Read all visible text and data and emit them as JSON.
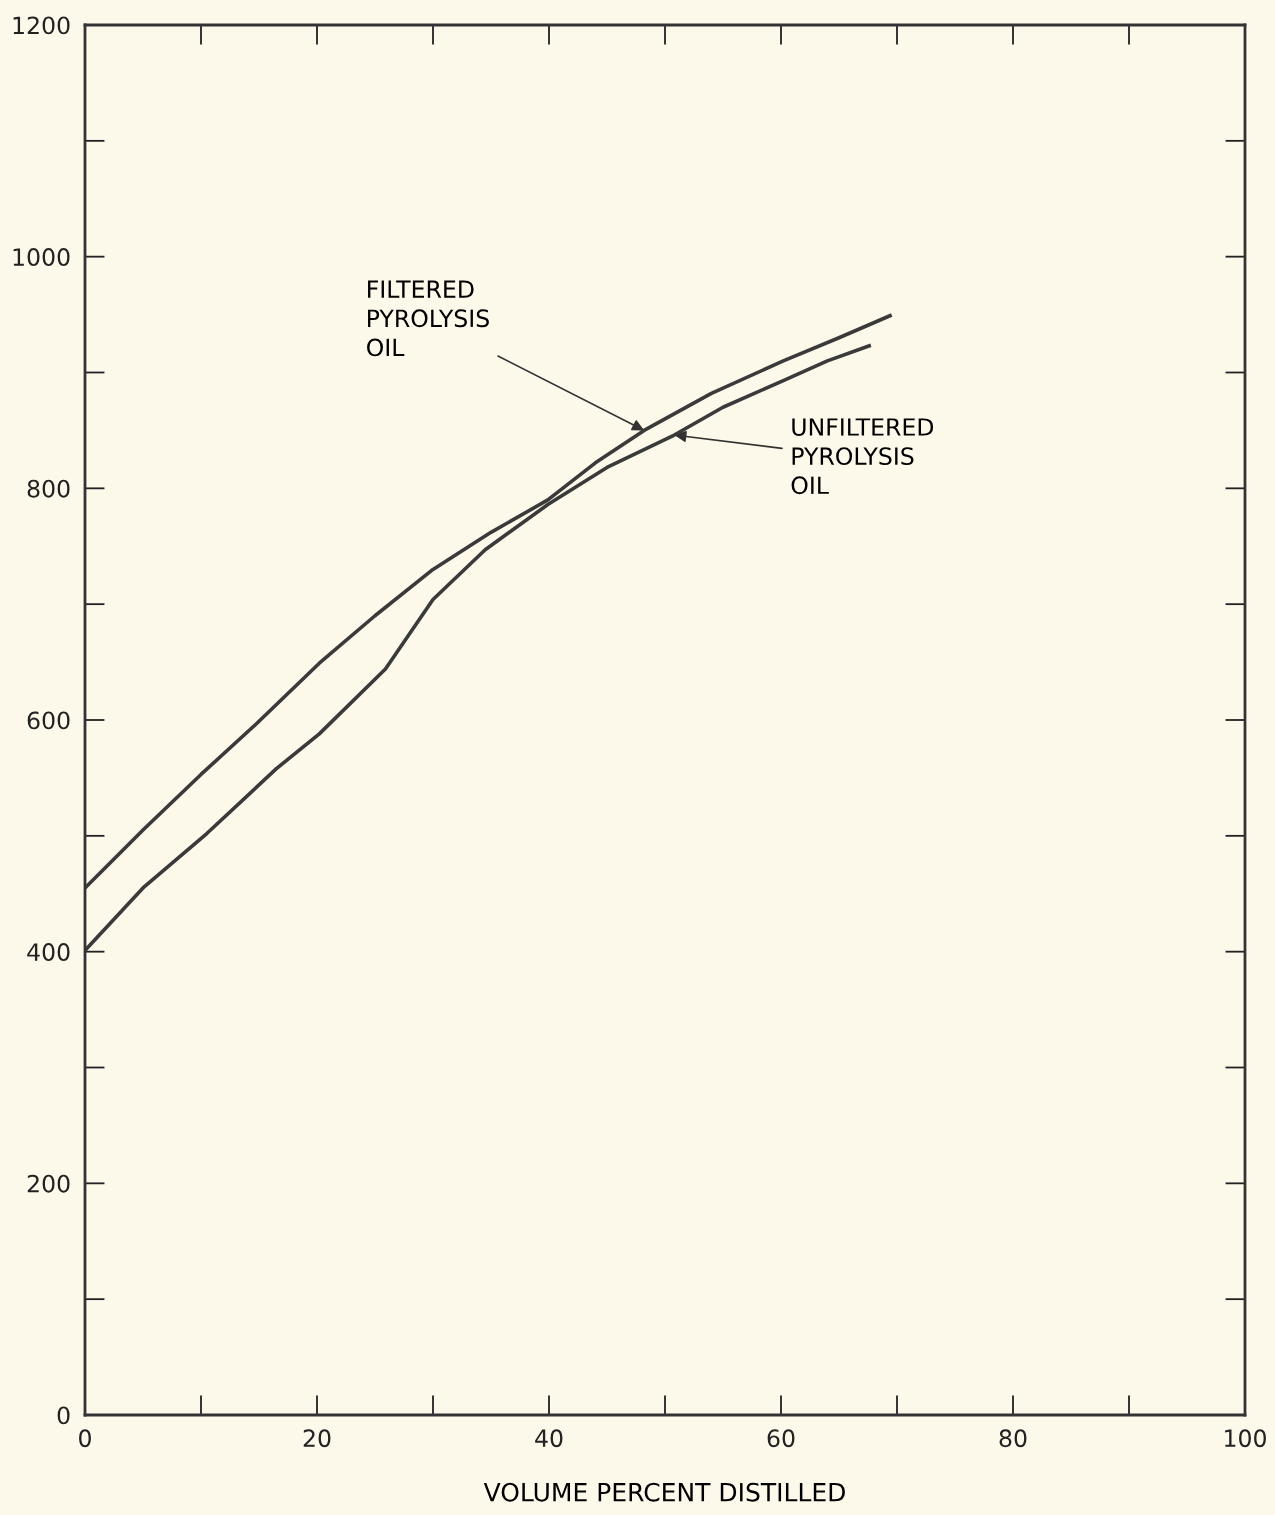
{
  "chart_data": {
    "type": "line",
    "xlabel": "VOLUME PERCENT DISTILLED",
    "xlim": [
      0,
      100
    ],
    "xticks": [
      0,
      20,
      40,
      60,
      80,
      100
    ],
    "ylim": [
      0,
      1200
    ],
    "yticks": [
      0,
      200,
      400,
      600,
      800,
      1000,
      1200
    ],
    "grid": false,
    "marker": "none",
    "line_style": "solid",
    "series": [
      {
        "color": "#3a3a3a",
        "x": [
          0,
          5,
          10,
          14.8,
          20.2,
          25,
          30,
          35,
          39.9,
          44,
          48.2,
          54,
          60.2,
          65,
          69.4
        ],
        "values": [
          455,
          505,
          553,
          597,
          649,
          690,
          730,
          762,
          790,
          822,
          850,
          882,
          910,
          930,
          949
        ]
      },
      {
        "color": "#3a3a3a",
        "x": [
          0,
          5,
          10.5,
          16.5,
          20.2,
          25.9,
          30,
          34.5,
          39.9,
          45,
          50.8,
          55,
          60.2,
          64,
          67.6
        ],
        "values": [
          401,
          455,
          502,
          558,
          588,
          644,
          704,
          747,
          786,
          818,
          846,
          870,
          893,
          910,
          923
        ]
      }
    ],
    "annotations": [
      {
        "text": "FILTERED\nPYROLYSIS\nOIL",
        "x": 48.2,
        "y": 850
      },
      {
        "text": "UNFILTERED\nPYROLYSIS\nOIL",
        "x": 50.8,
        "y": 846
      }
    ]
  }
}
